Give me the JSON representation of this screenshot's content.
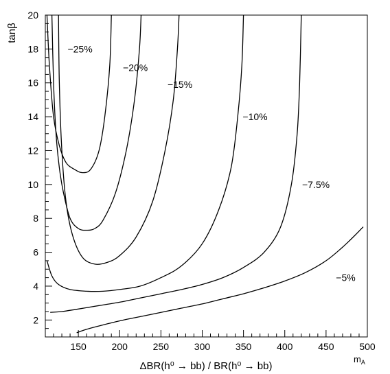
{
  "chart_data": {
    "type": "line",
    "title": "",
    "xlabel": "ΔBR(h⁰ → bb) / BR(h⁰ → bb)",
    "xlabel_corner": "m_A",
    "ylabel": "tanβ",
    "xlim": [
      110,
      500
    ],
    "ylim": [
      1,
      20
    ],
    "x_ticks": [
      150,
      200,
      250,
      300,
      350,
      400,
      450,
      500
    ],
    "y_ticks": [
      2,
      4,
      6,
      8,
      10,
      12,
      14,
      16,
      18,
      20
    ],
    "grid": false,
    "series": [
      {
        "name": "−25%",
        "label_at": [
          137,
          18.0
        ],
        "points": [
          [
            112,
            20
          ],
          [
            115,
            17
          ],
          [
            120,
            14
          ],
          [
            127,
            12.3
          ],
          [
            135,
            11.3
          ],
          [
            145,
            10.9
          ],
          [
            155,
            10.7
          ],
          [
            165,
            10.9
          ],
          [
            175,
            12
          ],
          [
            182,
            14
          ],
          [
            188,
            17
          ],
          [
            190,
            20
          ]
        ]
      },
      {
        "name": "−20%",
        "label_at": [
          204,
          16.9
        ],
        "points": [
          [
            118,
            20
          ],
          [
            120,
            16
          ],
          [
            123,
            13
          ],
          [
            127,
            11
          ],
          [
            132,
            9.5
          ],
          [
            140,
            8
          ],
          [
            150,
            7.4
          ],
          [
            160,
            7.3
          ],
          [
            170,
            7.4
          ],
          [
            180,
            7.9
          ],
          [
            195,
            9.5
          ],
          [
            208,
            12
          ],
          [
            218,
            15
          ],
          [
            224,
            18
          ],
          [
            226,
            20
          ]
        ]
      },
      {
        "name": "−15%",
        "label_at": [
          258,
          15.9
        ],
        "points": [
          [
            126,
            20
          ],
          [
            127,
            16
          ],
          [
            130,
            12
          ],
          [
            135,
            9
          ],
          [
            143,
            7
          ],
          [
            155,
            5.7
          ],
          [
            170,
            5.3
          ],
          [
            185,
            5.4
          ],
          [
            200,
            5.8
          ],
          [
            220,
            6.9
          ],
          [
            240,
            9
          ],
          [
            255,
            12
          ],
          [
            265,
            15
          ],
          [
            270,
            18
          ],
          [
            272,
            20
          ]
        ]
      },
      {
        "name": "−10%",
        "label_at": [
          349,
          14.0
        ],
        "points": [
          [
            112,
            5.5
          ],
          [
            118,
            4.6
          ],
          [
            126,
            4.1
          ],
          [
            140,
            3.8
          ],
          [
            160,
            3.7
          ],
          [
            180,
            3.7
          ],
          [
            200,
            3.8
          ],
          [
            225,
            4.0
          ],
          [
            250,
            4.5
          ],
          [
            275,
            5.2
          ],
          [
            300,
            6.5
          ],
          [
            320,
            8.5
          ],
          [
            335,
            11
          ],
          [
            343,
            14
          ],
          [
            348,
            17
          ],
          [
            350,
            20
          ]
        ]
      },
      {
        "name": "−7.5%",
        "label_at": [
          421,
          10.0
        ],
        "points": [
          [
            116,
            2.45
          ],
          [
            130,
            2.5
          ],
          [
            150,
            2.65
          ],
          [
            175,
            2.85
          ],
          [
            200,
            3.05
          ],
          [
            225,
            3.3
          ],
          [
            250,
            3.55
          ],
          [
            275,
            3.8
          ],
          [
            300,
            4.1
          ],
          [
            325,
            4.5
          ],
          [
            350,
            5.1
          ],
          [
            375,
            6.0
          ],
          [
            395,
            7.5
          ],
          [
            408,
            10
          ],
          [
            415,
            13
          ],
          [
            418,
            16
          ],
          [
            420,
            20
          ]
        ]
      },
      {
        "name": "−5%",
        "label_at": [
          462,
          4.5
        ],
        "points": [
          [
            148,
            1.25
          ],
          [
            160,
            1.45
          ],
          [
            175,
            1.65
          ],
          [
            200,
            1.95
          ],
          [
            225,
            2.2
          ],
          [
            250,
            2.45
          ],
          [
            275,
            2.7
          ],
          [
            300,
            2.95
          ],
          [
            325,
            3.25
          ],
          [
            350,
            3.55
          ],
          [
            375,
            3.9
          ],
          [
            400,
            4.3
          ],
          [
            425,
            4.8
          ],
          [
            450,
            5.5
          ],
          [
            470,
            6.3
          ],
          [
            485,
            7.0
          ],
          [
            495,
            7.5
          ]
        ]
      }
    ]
  }
}
